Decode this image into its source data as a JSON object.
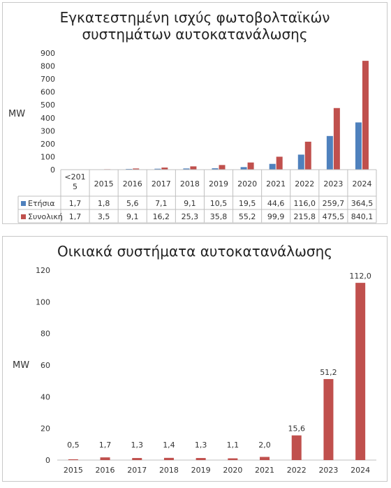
{
  "chart_data": [
    {
      "type": "bar",
      "title_lines": [
        "Εγκατεστημένη ισχύς φωτοβολταϊκών",
        "συστημάτων αυτοκατανάλωσης"
      ],
      "ylabel": "MW",
      "ylim": [
        0,
        900
      ],
      "yticks": [
        "0",
        "100",
        "200",
        "300",
        "400",
        "500",
        "600",
        "700",
        "800",
        "900"
      ],
      "categories": [
        "<2015",
        "2015",
        "2016",
        "2017",
        "2018",
        "2019",
        "2020",
        "2021",
        "2022",
        "2023",
        "2024"
      ],
      "category_labels": [
        [
          "<201",
          "5"
        ],
        [
          "2015"
        ],
        [
          "2016"
        ],
        [
          "2017"
        ],
        [
          "2018"
        ],
        [
          "2019"
        ],
        [
          "2020"
        ],
        [
          "2021"
        ],
        [
          "2022"
        ],
        [
          "2023"
        ],
        [
          "2024"
        ]
      ],
      "series": [
        {
          "name": "Ετήσια",
          "color": "#4f81bd",
          "values": [
            1.7,
            1.8,
            5.6,
            7.1,
            9.1,
            10.5,
            19.5,
            44.6,
            116.0,
            259.7,
            364.5
          ],
          "labels": [
            "1,7",
            "1,8",
            "5,6",
            "7,1",
            "9,1",
            "10,5",
            "19,5",
            "44,6",
            "116,0",
            "259,7",
            "364,5"
          ]
        },
        {
          "name": "Συνολική",
          "color": "#c0504d",
          "values": [
            1.7,
            3.5,
            9.1,
            16.2,
            25.3,
            35.8,
            55.2,
            99.9,
            215.8,
            475.5,
            840.1
          ],
          "labels": [
            "1,7",
            "3,5",
            "9,1",
            "16,2",
            "25,3",
            "35,8",
            "55,2",
            "99,9",
            "215,8",
            "475,5",
            "840,1"
          ]
        }
      ],
      "data_table": true
    },
    {
      "type": "bar",
      "title": "Οικιακά συστήματα αυτοκατανάλωσης",
      "ylabel": "MW",
      "ylim": [
        0,
        120
      ],
      "yticks": [
        "0",
        "20",
        "40",
        "60",
        "80",
        "100",
        "120"
      ],
      "categories": [
        "2015",
        "2016",
        "2017",
        "2018",
        "2019",
        "2020",
        "2021",
        "2022",
        "2023",
        "2024"
      ],
      "series": [
        {
          "color": "#c0504d",
          "values": [
            0.5,
            1.7,
            1.3,
            1.4,
            1.3,
            1.1,
            2.0,
            15.6,
            51.2,
            112.0
          ],
          "labels": [
            "0,5",
            "1,7",
            "1,3",
            "1,4",
            "1,3",
            "1,1",
            "2,0",
            "15,6",
            "51,2",
            "112,0"
          ]
        }
      ]
    }
  ]
}
